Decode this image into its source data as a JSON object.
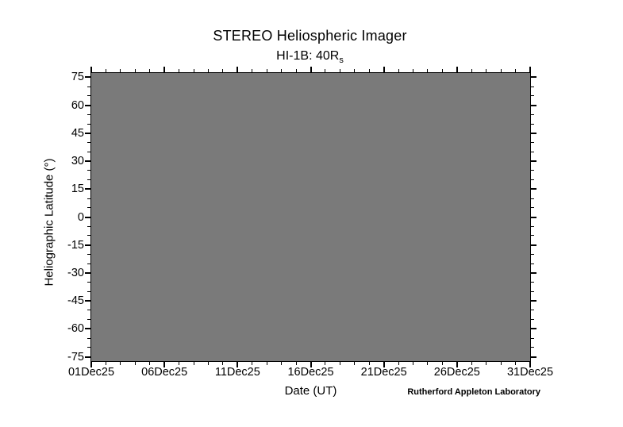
{
  "chart": {
    "title": "STEREO Heliospheric Imager",
    "subtitle_prefix": "HI-1B: 40R",
    "subtitle_sub": "s",
    "xlabel": "Date (UT)",
    "ylabel": "Heliographic Latitude (°)",
    "credit": "Rutherford Appleton Laboratory"
  },
  "chart_data": {
    "type": "heatmap",
    "title": "STEREO Heliospheric Imager",
    "subtitle": "HI-1B: 40Rs",
    "xlabel": "Date (UT)",
    "ylabel": "Heliographic Latitude (°)",
    "x_tick_labels": [
      "01Dec25",
      "06Dec25",
      "11Dec25",
      "16Dec25",
      "21Dec25",
      "26Dec25",
      "31Dec25"
    ],
    "x_major_step_days": 5,
    "x_minor_step_days": 1,
    "xlim_days": [
      0,
      30
    ],
    "y_major_ticks": [
      75,
      60,
      45,
      30,
      15,
      0,
      -15,
      -30,
      -45,
      -60,
      -75
    ],
    "y_minor_step": 5,
    "ylim": [
      -77.3,
      77.3
    ],
    "values": "uniform (blank image, no data rendered)",
    "fill_color": "#7a7a7a",
    "axis_color": "#000000",
    "background_color": "#ffffff",
    "grid": false,
    "legend": "none",
    "ticks_direction": "outward",
    "ticks_sides": [
      "top",
      "bottom",
      "left",
      "right"
    ]
  }
}
